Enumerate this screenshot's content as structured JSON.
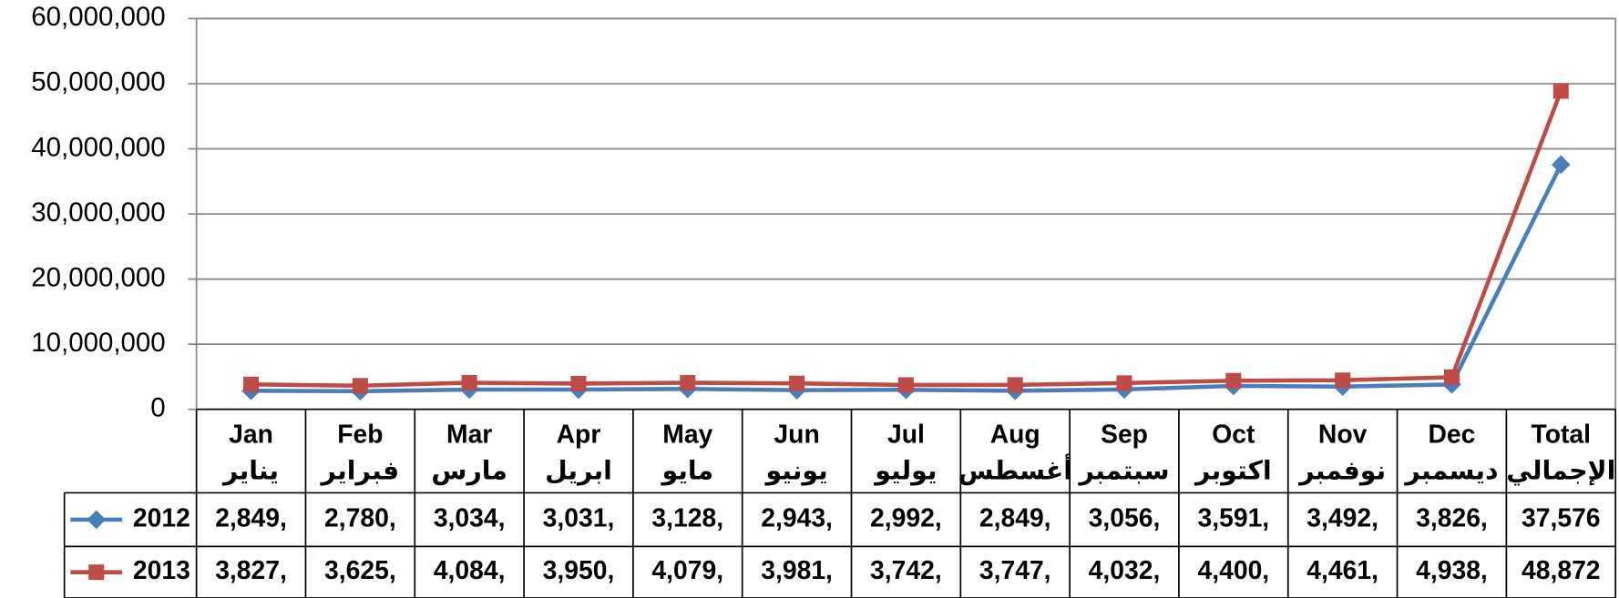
{
  "chart_data": {
    "type": "line",
    "categories": [
      "Jan",
      "Feb",
      "Mar",
      "Apr",
      "May",
      "Jun",
      "Jul",
      "Aug",
      "Sep",
      "Oct",
      "Nov",
      "Dec",
      "Total"
    ],
    "categories_secondary": [
      "يناير",
      "فبراير",
      "مارس",
      "ابريل",
      "مايو",
      "يونيو",
      "يوليو",
      "أغسطس",
      "سبتمبر",
      "اكتوبر",
      "نوفمبر",
      "ديسمبر",
      "الإجمالي"
    ],
    "series": [
      {
        "name": "2012",
        "color": "#4a7ebb",
        "marker": "diamond",
        "values": [
          2849000,
          2780000,
          3034000,
          3031000,
          3128000,
          2943000,
          2992000,
          2849000,
          3056000,
          3591000,
          3492000,
          3826000,
          37576000
        ],
        "value_labels": [
          "2,849,",
          "2,780,",
          "3,034,",
          "3,031,",
          "3,128,",
          "2,943,",
          "2,992,",
          "2,849,",
          "3,056,",
          "3,591,",
          "3,492,",
          "3,826,",
          "37,576"
        ]
      },
      {
        "name": "2013",
        "color": "#be4b48",
        "marker": "square",
        "values": [
          3827000,
          3625000,
          4084000,
          3950000,
          4079000,
          3981000,
          3742000,
          3747000,
          4032000,
          4400000,
          4461000,
          4938000,
          48872000
        ],
        "value_labels": [
          "3,827,",
          "3,625,",
          "4,084,",
          "3,950,",
          "4,079,",
          "3,981,",
          "3,742,",
          "3,747,",
          "4,032,",
          "4,400,",
          "4,461,",
          "4,938,",
          "48,872"
        ]
      }
    ],
    "ylim": [
      0,
      60000000
    ],
    "yticks": [
      0,
      {
        "value": 10000000,
        "label": "10,000,000"
      },
      {
        "value": 20000000,
        "label": "20,000,000"
      },
      {
        "value": 30000000,
        "label": "30,000,000"
      },
      {
        "value": 40000000,
        "label": "40,000,000"
      },
      {
        "value": 50000000,
        "label": "50,000,000"
      },
      {
        "value": 60000000,
        "label": "60,000,000"
      }
    ],
    "grid": true
  }
}
